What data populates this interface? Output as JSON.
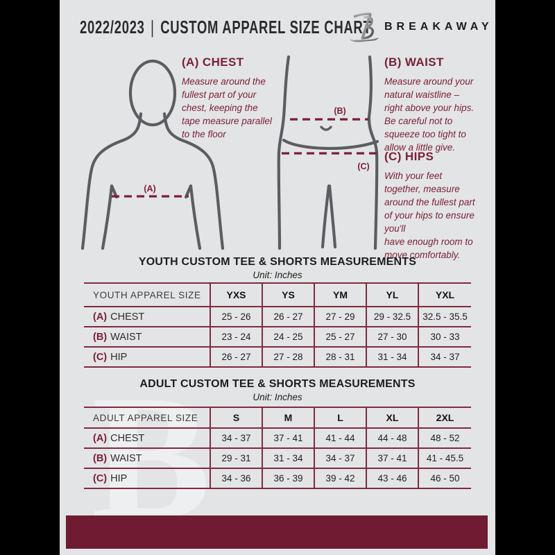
{
  "header": {
    "edition": "2022/2023",
    "separator": "|",
    "title": "CUSTOM APPAREL SIZE CHART",
    "brand": "BREAKAWAY"
  },
  "guide": {
    "chest": {
      "heading": "(A) CHEST",
      "body": "Measure around the\nfullest part of your\nchest, keeping the\ntape measure parallel\nto the floor"
    },
    "waist": {
      "heading": "(B) WAIST",
      "body": "Measure around your\nnatural waistline –\nright above your hips.\nBe careful not to\nsqueeze too tight to\nallow a little give."
    },
    "hips": {
      "heading": "(C) HIPS",
      "body": "With your feet\ntogether, measure\naround the fullest part\nof your hips to ensure\nyou'll\nhave enough room to\nmove comfortably."
    },
    "labels": {
      "chest": "(A)",
      "waist": "(B)",
      "hips": "(C)"
    }
  },
  "tables": [
    {
      "title": "YOUTH CUSTOM TEE & SHORTS MEASUREMENTS",
      "unit": "Unit: Inches",
      "size_col_header": "YOUTH APPAREL SIZE",
      "sizes": [
        "YXS",
        "YS",
        "YM",
        "YL",
        "YXL"
      ],
      "rows": [
        {
          "letter": "(A)",
          "label": "CHEST",
          "values": [
            "25 - 26",
            "26 - 27",
            "27 - 29",
            "29 - 32.5",
            "32.5 - 35.5"
          ]
        },
        {
          "letter": "(B)",
          "label": "WAIST",
          "values": [
            "23 - 24",
            "24 - 25",
            "25 - 27",
            "27 - 30",
            "30 - 33"
          ]
        },
        {
          "letter": "(C)",
          "label": "HIP",
          "values": [
            "26 - 27",
            "27 - 28",
            "28 - 31",
            "31 - 34",
            "34 - 37"
          ]
        }
      ]
    },
    {
      "title": "ADULT CUSTOM TEE & SHORTS MEASUREMENTS",
      "unit": "Unit: Inches",
      "size_col_header": "ADULT APPAREL SIZE",
      "sizes": [
        "S",
        "M",
        "L",
        "XL",
        "2XL"
      ],
      "rows": [
        {
          "letter": "(A)",
          "label": "CHEST",
          "values": [
            "34 - 37",
            "37 - 41",
            "41 - 44",
            "44 - 48",
            "48 - 52"
          ]
        },
        {
          "letter": "(B)",
          "label": "WAIST",
          "values": [
            "29 - 31",
            "31 - 34",
            "34 - 37",
            "37 - 41",
            "41 - 45.5"
          ]
        },
        {
          "letter": "(C)",
          "label": "HIP",
          "values": [
            "34 - 36",
            "36 - 39",
            "39 - 42",
            "43 - 46",
            "46 - 50"
          ]
        }
      ]
    }
  ],
  "watermark_letter": "B",
  "colors": {
    "page_background": "#e3e4e6",
    "outer_background": "#000000",
    "maroon_text": "#7a1f35",
    "table_lines": "#7e2a3e",
    "bottom_bar": "#6f1c33",
    "figure_gray": "#5c5d61"
  }
}
